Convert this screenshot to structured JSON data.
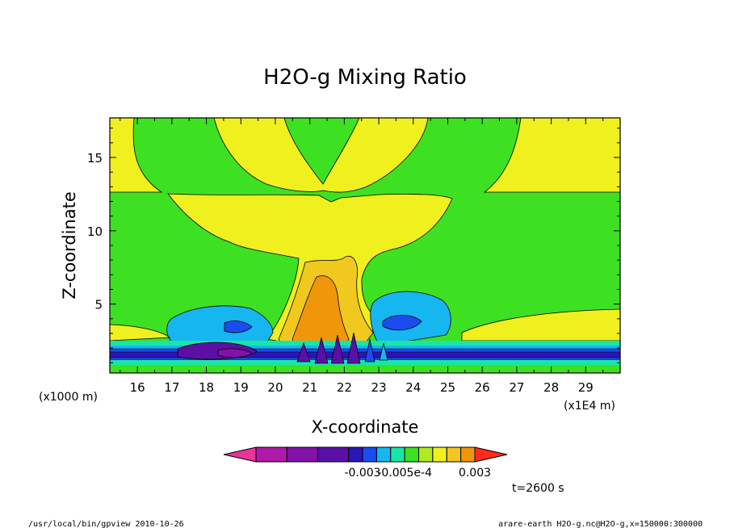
{
  "chart_data": {
    "type": "heatmap",
    "title": "H2O-g Mixing Ratio",
    "xlabel": "X-coordinate",
    "ylabel": "Z-coordinate",
    "x_unit_left": "(x1000 m)",
    "x_unit_right": "(x1E4 m)",
    "xlim": [
      15.2,
      30.0
    ],
    "ylim": [
      0.3,
      17.7
    ],
    "x_ticks": [
      16,
      17,
      18,
      19,
      20,
      21,
      22,
      23,
      24,
      25,
      26,
      27,
      28,
      29
    ],
    "y_ticks": [
      5,
      10,
      15
    ],
    "colorbar": {
      "colors": [
        "#e8359a",
        "#b01aa8",
        "#8212a8",
        "#5a0fa5",
        "#2a16b4",
        "#1a4cf0",
        "#16b6f0",
        "#18e6a8",
        "#3ee022",
        "#b0ea20",
        "#f0f01e",
        "#f0c81e",
        "#f0960a",
        "#ff2a1a"
      ],
      "labels": [
        {
          "text": "-0.003",
          "after_segment": 4
        },
        {
          "text": "-0.005e-4",
          "after_segment": 7
        },
        {
          "text": "0.003",
          "after_segment": 12
        }
      ]
    },
    "time_label": "t=2600 s"
  },
  "footer": {
    "left": "/usr/local/bin/gpview  2010-10-26",
    "right": "arare-earth_H2O-g.nc@H2O-g,x=150000:300000"
  }
}
